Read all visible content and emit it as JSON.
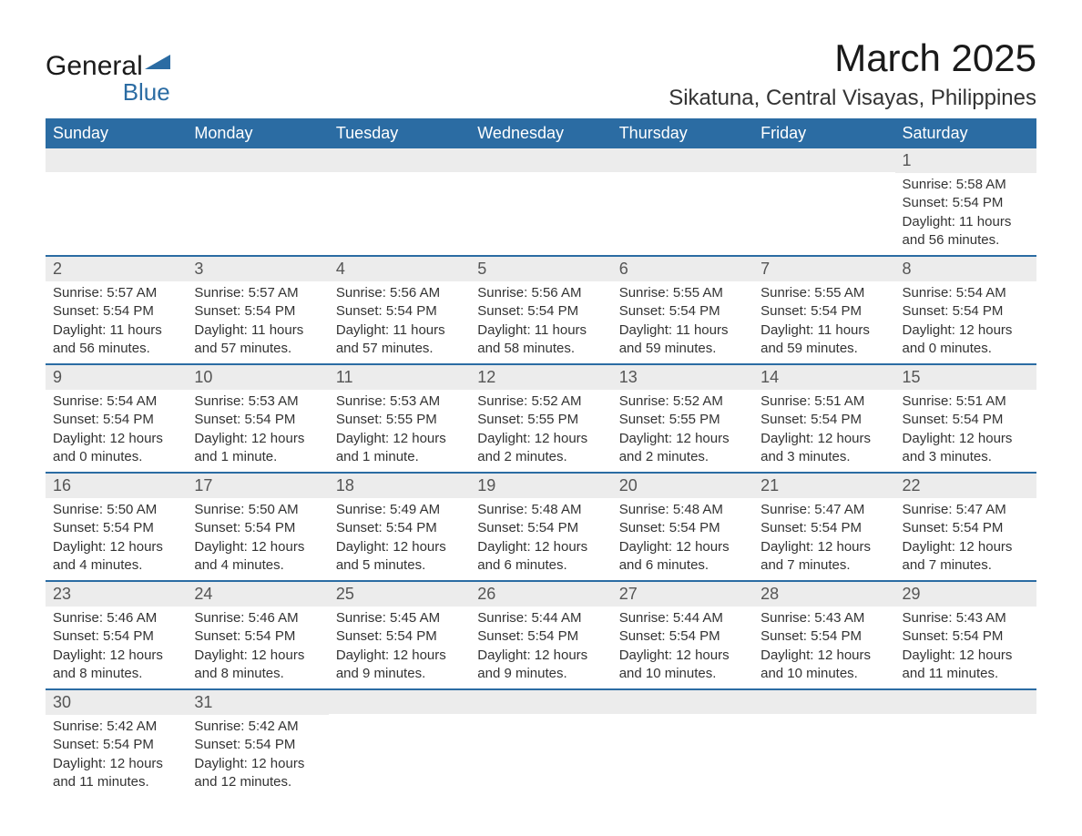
{
  "logo": {
    "text_general": "General",
    "text_blue": "Blue",
    "color_general": "#1a1a1a",
    "color_blue": "#2b6ca3",
    "triangle_color": "#2b6ca3"
  },
  "title": {
    "month": "March 2025",
    "location": "Sikatuna, Central Visayas, Philippines",
    "month_fontsize": 42,
    "location_fontsize": 24,
    "text_color": "#1a1a1a"
  },
  "calendar": {
    "header_bg": "#2b6ca3",
    "header_text_color": "#ffffff",
    "daynum_bg": "#ececec",
    "daynum_color": "#555555",
    "data_text_color": "#333333",
    "row_border_color": "#2b6ca3",
    "background_color": "#ffffff",
    "header_fontsize": 18,
    "daynum_fontsize": 18,
    "data_fontsize": 15,
    "columns": [
      "Sunday",
      "Monday",
      "Tuesday",
      "Wednesday",
      "Thursday",
      "Friday",
      "Saturday"
    ],
    "weeks": [
      [
        null,
        null,
        null,
        null,
        null,
        null,
        {
          "day": "1",
          "sunrise": "Sunrise: 5:58 AM",
          "sunset": "Sunset: 5:54 PM",
          "daylight": "Daylight: 11 hours and 56 minutes."
        }
      ],
      [
        {
          "day": "2",
          "sunrise": "Sunrise: 5:57 AM",
          "sunset": "Sunset: 5:54 PM",
          "daylight": "Daylight: 11 hours and 56 minutes."
        },
        {
          "day": "3",
          "sunrise": "Sunrise: 5:57 AM",
          "sunset": "Sunset: 5:54 PM",
          "daylight": "Daylight: 11 hours and 57 minutes."
        },
        {
          "day": "4",
          "sunrise": "Sunrise: 5:56 AM",
          "sunset": "Sunset: 5:54 PM",
          "daylight": "Daylight: 11 hours and 57 minutes."
        },
        {
          "day": "5",
          "sunrise": "Sunrise: 5:56 AM",
          "sunset": "Sunset: 5:54 PM",
          "daylight": "Daylight: 11 hours and 58 minutes."
        },
        {
          "day": "6",
          "sunrise": "Sunrise: 5:55 AM",
          "sunset": "Sunset: 5:54 PM",
          "daylight": "Daylight: 11 hours and 59 minutes."
        },
        {
          "day": "7",
          "sunrise": "Sunrise: 5:55 AM",
          "sunset": "Sunset: 5:54 PM",
          "daylight": "Daylight: 11 hours and 59 minutes."
        },
        {
          "day": "8",
          "sunrise": "Sunrise: 5:54 AM",
          "sunset": "Sunset: 5:54 PM",
          "daylight": "Daylight: 12 hours and 0 minutes."
        }
      ],
      [
        {
          "day": "9",
          "sunrise": "Sunrise: 5:54 AM",
          "sunset": "Sunset: 5:54 PM",
          "daylight": "Daylight: 12 hours and 0 minutes."
        },
        {
          "day": "10",
          "sunrise": "Sunrise: 5:53 AM",
          "sunset": "Sunset: 5:54 PM",
          "daylight": "Daylight: 12 hours and 1 minute."
        },
        {
          "day": "11",
          "sunrise": "Sunrise: 5:53 AM",
          "sunset": "Sunset: 5:55 PM",
          "daylight": "Daylight: 12 hours and 1 minute."
        },
        {
          "day": "12",
          "sunrise": "Sunrise: 5:52 AM",
          "sunset": "Sunset: 5:55 PM",
          "daylight": "Daylight: 12 hours and 2 minutes."
        },
        {
          "day": "13",
          "sunrise": "Sunrise: 5:52 AM",
          "sunset": "Sunset: 5:55 PM",
          "daylight": "Daylight: 12 hours and 2 minutes."
        },
        {
          "day": "14",
          "sunrise": "Sunrise: 5:51 AM",
          "sunset": "Sunset: 5:54 PM",
          "daylight": "Daylight: 12 hours and 3 minutes."
        },
        {
          "day": "15",
          "sunrise": "Sunrise: 5:51 AM",
          "sunset": "Sunset: 5:54 PM",
          "daylight": "Daylight: 12 hours and 3 minutes."
        }
      ],
      [
        {
          "day": "16",
          "sunrise": "Sunrise: 5:50 AM",
          "sunset": "Sunset: 5:54 PM",
          "daylight": "Daylight: 12 hours and 4 minutes."
        },
        {
          "day": "17",
          "sunrise": "Sunrise: 5:50 AM",
          "sunset": "Sunset: 5:54 PM",
          "daylight": "Daylight: 12 hours and 4 minutes."
        },
        {
          "day": "18",
          "sunrise": "Sunrise: 5:49 AM",
          "sunset": "Sunset: 5:54 PM",
          "daylight": "Daylight: 12 hours and 5 minutes."
        },
        {
          "day": "19",
          "sunrise": "Sunrise: 5:48 AM",
          "sunset": "Sunset: 5:54 PM",
          "daylight": "Daylight: 12 hours and 6 minutes."
        },
        {
          "day": "20",
          "sunrise": "Sunrise: 5:48 AM",
          "sunset": "Sunset: 5:54 PM",
          "daylight": "Daylight: 12 hours and 6 minutes."
        },
        {
          "day": "21",
          "sunrise": "Sunrise: 5:47 AM",
          "sunset": "Sunset: 5:54 PM",
          "daylight": "Daylight: 12 hours and 7 minutes."
        },
        {
          "day": "22",
          "sunrise": "Sunrise: 5:47 AM",
          "sunset": "Sunset: 5:54 PM",
          "daylight": "Daylight: 12 hours and 7 minutes."
        }
      ],
      [
        {
          "day": "23",
          "sunrise": "Sunrise: 5:46 AM",
          "sunset": "Sunset: 5:54 PM",
          "daylight": "Daylight: 12 hours and 8 minutes."
        },
        {
          "day": "24",
          "sunrise": "Sunrise: 5:46 AM",
          "sunset": "Sunset: 5:54 PM",
          "daylight": "Daylight: 12 hours and 8 minutes."
        },
        {
          "day": "25",
          "sunrise": "Sunrise: 5:45 AM",
          "sunset": "Sunset: 5:54 PM",
          "daylight": "Daylight: 12 hours and 9 minutes."
        },
        {
          "day": "26",
          "sunrise": "Sunrise: 5:44 AM",
          "sunset": "Sunset: 5:54 PM",
          "daylight": "Daylight: 12 hours and 9 minutes."
        },
        {
          "day": "27",
          "sunrise": "Sunrise: 5:44 AM",
          "sunset": "Sunset: 5:54 PM",
          "daylight": "Daylight: 12 hours and 10 minutes."
        },
        {
          "day": "28",
          "sunrise": "Sunrise: 5:43 AM",
          "sunset": "Sunset: 5:54 PM",
          "daylight": "Daylight: 12 hours and 10 minutes."
        },
        {
          "day": "29",
          "sunrise": "Sunrise: 5:43 AM",
          "sunset": "Sunset: 5:54 PM",
          "daylight": "Daylight: 12 hours and 11 minutes."
        }
      ],
      [
        {
          "day": "30",
          "sunrise": "Sunrise: 5:42 AM",
          "sunset": "Sunset: 5:54 PM",
          "daylight": "Daylight: 12 hours and 11 minutes."
        },
        {
          "day": "31",
          "sunrise": "Sunrise: 5:42 AM",
          "sunset": "Sunset: 5:54 PM",
          "daylight": "Daylight: 12 hours and 12 minutes."
        },
        null,
        null,
        null,
        null,
        null
      ]
    ]
  }
}
